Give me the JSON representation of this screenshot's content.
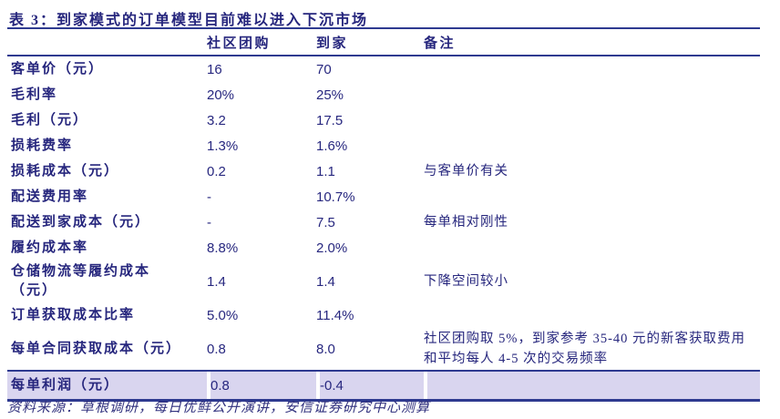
{
  "title": "表 3：到家模式的订单模型目前难以进入下沉市场",
  "table": {
    "columns": [
      "",
      "社区团购",
      "到家",
      "备注"
    ],
    "rows": [
      {
        "label": "客单价（元）",
        "c1": "16",
        "c2": "70",
        "note": ""
      },
      {
        "label": "毛利率",
        "c1": "20%",
        "c2": "25%",
        "note": ""
      },
      {
        "label": "毛利（元）",
        "c1": "3.2",
        "c2": "17.5",
        "note": ""
      },
      {
        "label": "损耗费率",
        "c1": "1.3%",
        "c2": "1.6%",
        "note": ""
      },
      {
        "label": "损耗成本（元）",
        "c1": "0.2",
        "c2": "1.1",
        "note": "与客单价有关"
      },
      {
        "label": "配送费用率",
        "c1": "-",
        "c2": "10.7%",
        "note": ""
      },
      {
        "label": "配送到家成本（元）",
        "c1": "-",
        "c2": "7.5",
        "note": "每单相对刚性"
      },
      {
        "label": "履约成本率",
        "c1": "8.8%",
        "c2": "2.0%",
        "note": ""
      },
      {
        "label": "仓储物流等履约成本\n（元）",
        "c1": "1.4",
        "c2": "1.4",
        "note": "下降空间较小",
        "tall": true
      },
      {
        "label": "订单获取成本比率",
        "c1": "5.0%",
        "c2": "11.4%",
        "note": ""
      },
      {
        "label": "每单合同获取成本（元）",
        "c1": "0.8",
        "c2": "8.0",
        "note": "社区团购取 5%，到家参考 35-40 元的新客获取费用和平均每人 4-5 次的交易频率",
        "tall": true
      },
      {
        "label": "每单利润（元）",
        "c1": "0.8",
        "c2": "-0.4",
        "note": "",
        "highlight": true
      }
    ]
  },
  "source": "资料来源：草根调研，每日优鲜公开演讲，安信证券研究中心测算",
  "colors": {
    "text_navy": "#26267d",
    "line_navy": "#2e3a90",
    "highlight_row_bg": "#d9d5ef",
    "page_bg": "#ffffff"
  }
}
